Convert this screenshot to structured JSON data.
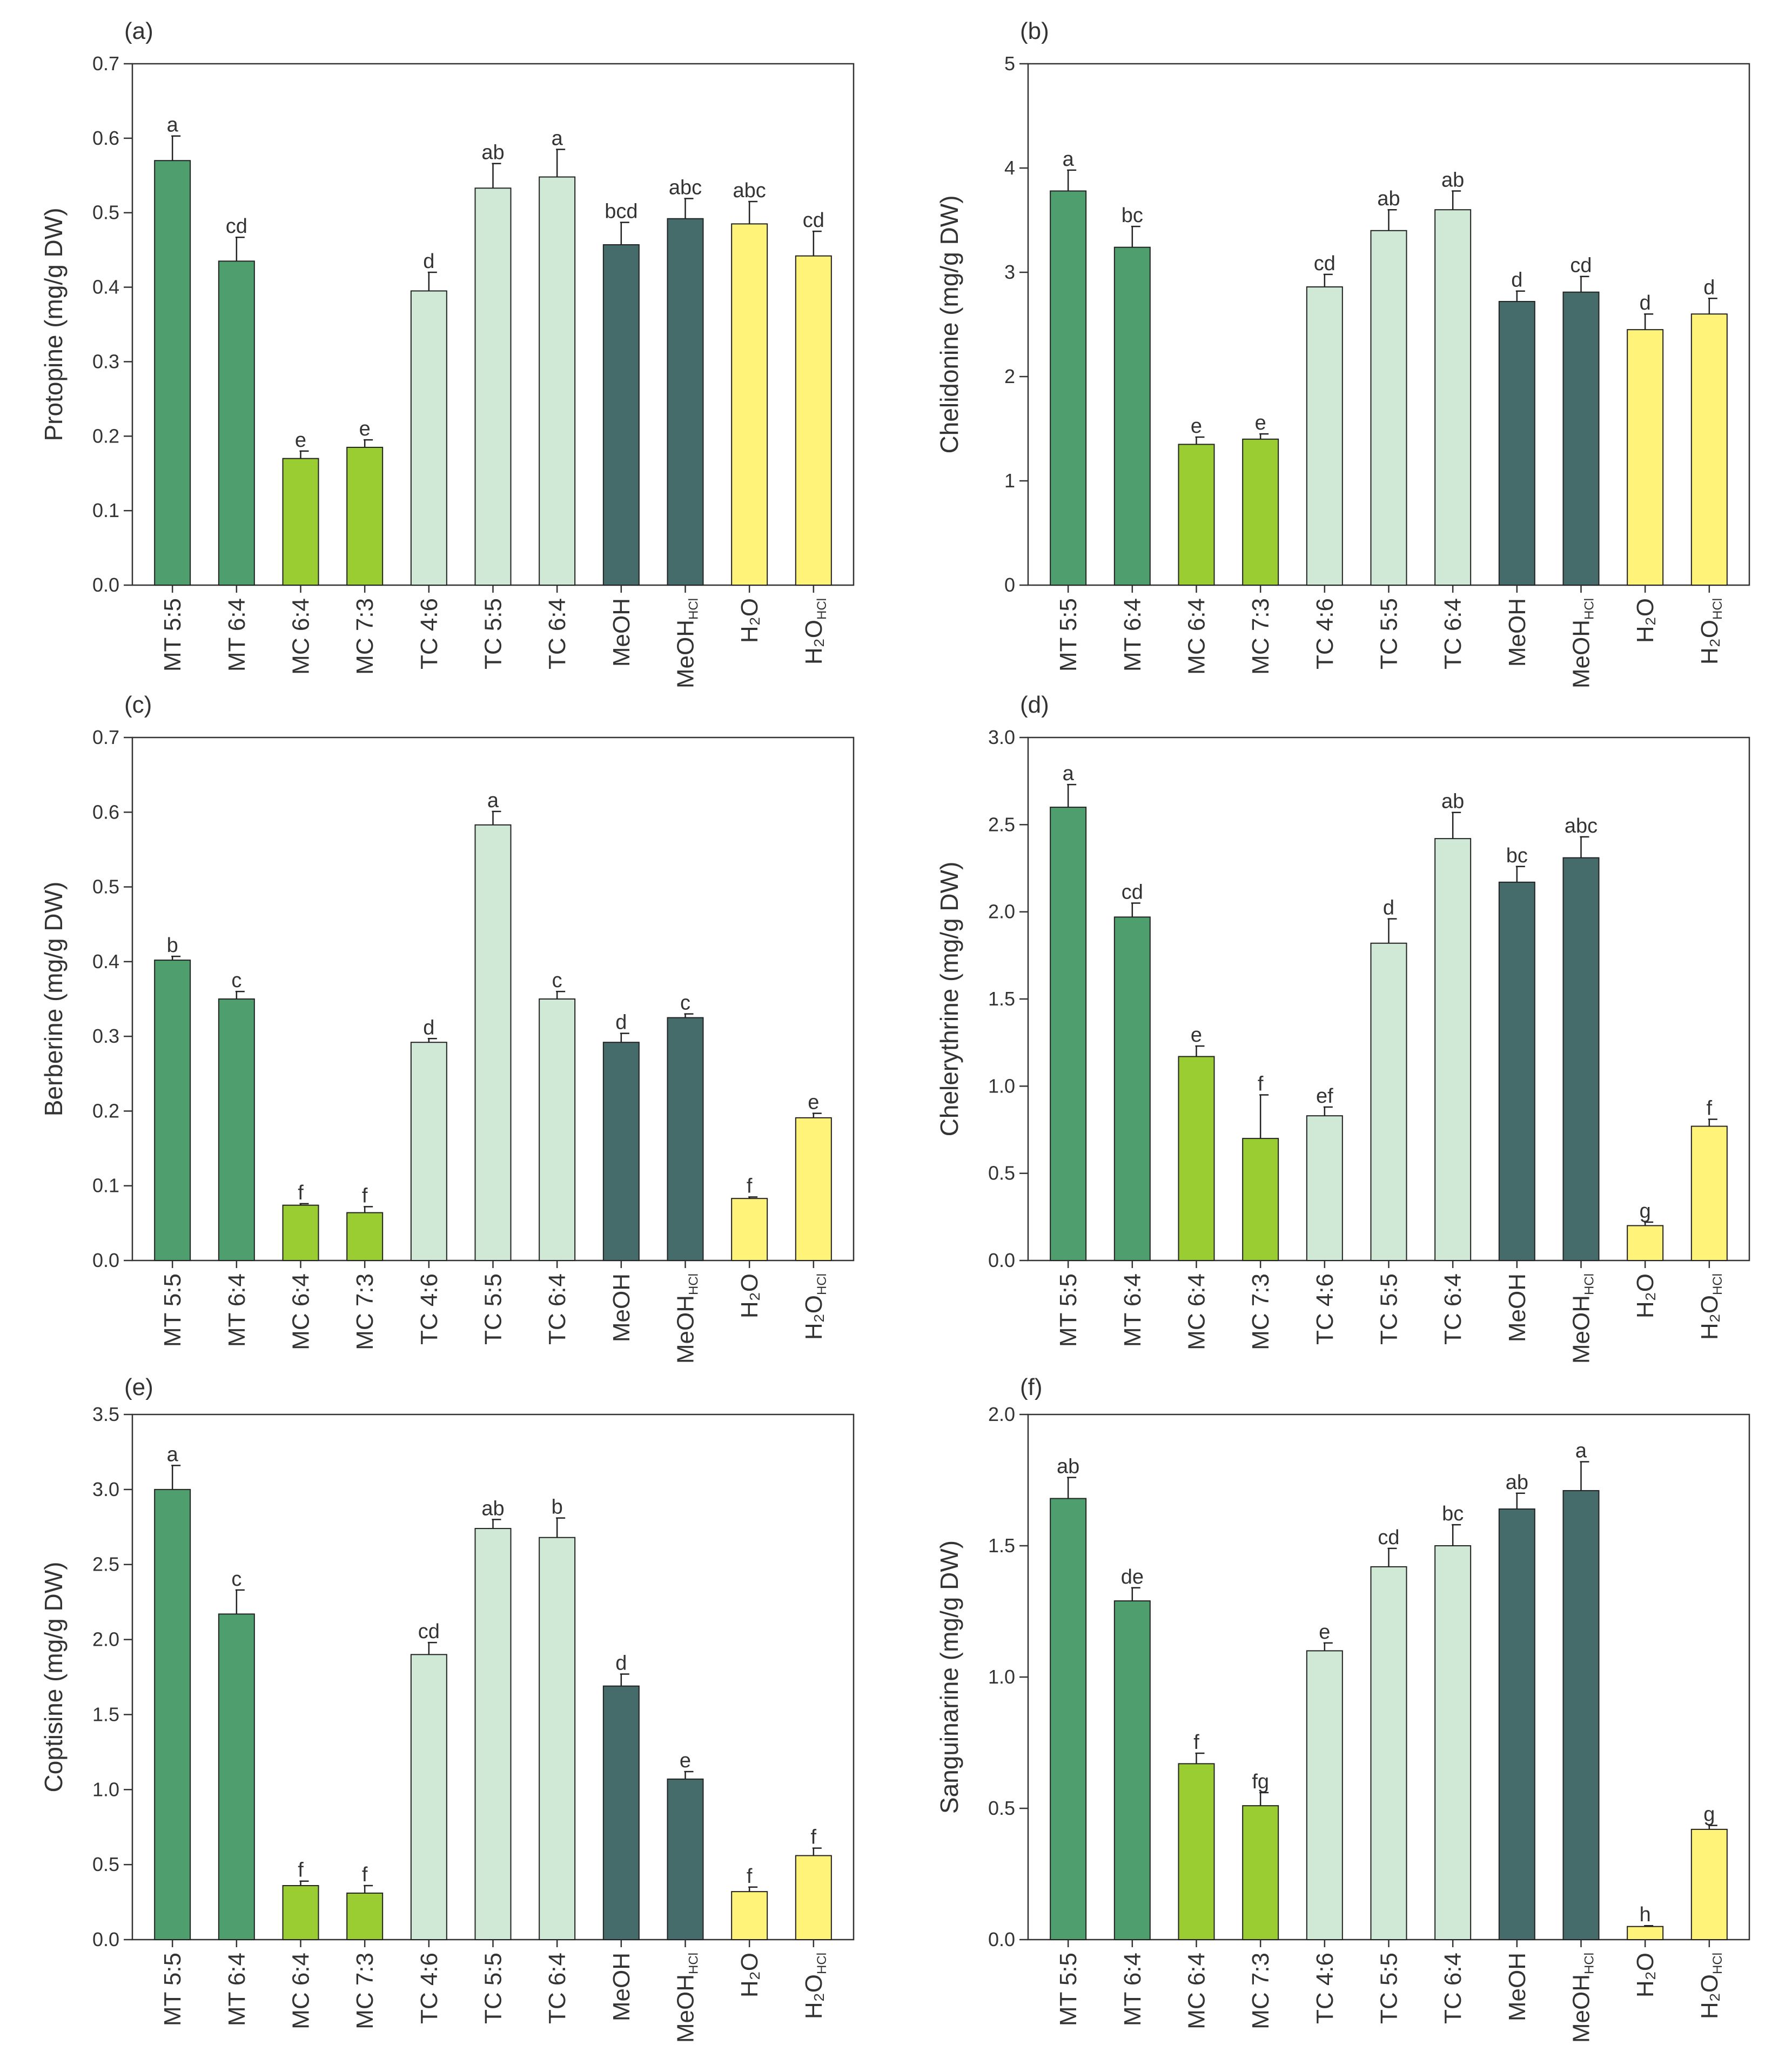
{
  "chart_data": [
    {
      "type": "bar",
      "panel_label": "(a)",
      "ylabel": "Protopine (mg/g DW)",
      "ylim": [
        0,
        0.7
      ],
      "yticks": [
        "0.0",
        "0.1",
        "0.2",
        "0.3",
        "0.4",
        "0.5",
        "0.6",
        "0.7"
      ],
      "values": [
        0.57,
        0.435,
        0.17,
        0.185,
        0.395,
        0.533,
        0.548,
        0.457,
        0.492,
        0.485,
        0.442
      ],
      "errors": [
        0.033,
        0.032,
        0.01,
        0.01,
        0.025,
        0.033,
        0.037,
        0.03,
        0.027,
        0.03,
        0.033
      ],
      "letters": [
        "a",
        "cd",
        "e",
        "e",
        "d",
        "ab",
        "a",
        "bcd",
        "abc",
        "abc",
        "cd"
      ]
    },
    {
      "type": "bar",
      "panel_label": "(b)",
      "ylabel": "Chelidonine (mg/g DW)",
      "ylim": [
        0,
        5
      ],
      "yticks": [
        "0",
        "1",
        "2",
        "3",
        "4",
        "5"
      ],
      "values": [
        3.78,
        3.24,
        1.35,
        1.4,
        2.86,
        3.4,
        3.6,
        2.72,
        2.81,
        2.45,
        2.6
      ],
      "errors": [
        0.2,
        0.2,
        0.07,
        0.05,
        0.12,
        0.2,
        0.18,
        0.1,
        0.15,
        0.15,
        0.15
      ],
      "letters": [
        "a",
        "bc",
        "e",
        "e",
        "cd",
        "ab",
        "ab",
        "d",
        "cd",
        "d",
        "d"
      ]
    },
    {
      "type": "bar",
      "panel_label": "(c)",
      "ylabel": "Berberine (mg/g DW)",
      "ylim": [
        0,
        0.7
      ],
      "yticks": [
        "0.0",
        "0.1",
        "0.2",
        "0.3",
        "0.4",
        "0.5",
        "0.6",
        "0.7"
      ],
      "values": [
        0.402,
        0.35,
        0.074,
        0.064,
        0.292,
        0.583,
        0.35,
        0.292,
        0.325,
        0.083,
        0.191
      ],
      "errors": [
        0.005,
        0.01,
        0.002,
        0.008,
        0.005,
        0.018,
        0.01,
        0.012,
        0.005,
        0.002,
        0.006
      ],
      "letters": [
        "b",
        "c",
        "f",
        "f",
        "d",
        "a",
        "c",
        "d",
        "c",
        "f",
        "e"
      ]
    },
    {
      "type": "bar",
      "panel_label": "(d)",
      "ylabel": "Chelerythrine (mg/g DW)",
      "ylim": [
        0,
        3.0
      ],
      "yticks": [
        "0.0",
        "0.5",
        "1.0",
        "1.5",
        "2.0",
        "2.5",
        "3.0"
      ],
      "values": [
        2.6,
        1.97,
        1.17,
        0.7,
        0.83,
        1.82,
        2.42,
        2.17,
        2.31,
        0.2,
        0.77
      ],
      "errors": [
        0.13,
        0.08,
        0.06,
        0.25,
        0.05,
        0.14,
        0.15,
        0.09,
        0.12,
        0.02,
        0.04
      ],
      "letters": [
        "a",
        "cd",
        "e",
        "f",
        "ef",
        "d",
        "ab",
        "bc",
        "abc",
        "g",
        "f"
      ]
    },
    {
      "type": "bar",
      "panel_label": "(e)",
      "ylabel": "Coptisine (mg/g DW)",
      "ylim": [
        0,
        3.5
      ],
      "yticks": [
        "0.0",
        "0.5",
        "1.0",
        "1.5",
        "2.0",
        "2.5",
        "3.0",
        "3.5"
      ],
      "values": [
        3.0,
        2.17,
        0.36,
        0.31,
        1.9,
        2.74,
        2.68,
        1.69,
        1.07,
        0.32,
        0.56
      ],
      "errors": [
        0.16,
        0.16,
        0.03,
        0.05,
        0.08,
        0.06,
        0.13,
        0.08,
        0.05,
        0.03,
        0.05
      ],
      "letters": [
        "a",
        "c",
        "f",
        "f",
        "cd",
        "ab",
        "b",
        "d",
        "e",
        "f",
        "f"
      ]
    },
    {
      "type": "bar",
      "panel_label": "(f)",
      "ylabel": "Sanguinarine (mg/g DW)",
      "ylim": [
        0,
        2.0
      ],
      "yticks": [
        "0.0",
        "0.5",
        "1.0",
        "1.5",
        "2.0"
      ],
      "values": [
        1.68,
        1.29,
        0.67,
        0.51,
        1.1,
        1.42,
        1.5,
        1.64,
        1.71,
        0.05,
        0.42
      ],
      "errors": [
        0.08,
        0.05,
        0.04,
        0.05,
        0.03,
        0.07,
        0.08,
        0.06,
        0.11,
        0.003,
        0.015
      ],
      "letters": [
        "ab",
        "de",
        "f",
        "fg",
        "e",
        "cd",
        "bc",
        "ab",
        "a",
        "h",
        "g"
      ]
    }
  ],
  "categories": [
    {
      "base": "MT 5:5",
      "sub": "",
      "colorKey": "mt"
    },
    {
      "base": "MT 6:4",
      "sub": "",
      "colorKey": "mt"
    },
    {
      "base": "MC 6:4",
      "sub": "",
      "colorKey": "mc"
    },
    {
      "base": "MC 7:3",
      "sub": "",
      "colorKey": "mc"
    },
    {
      "base": "TC 4:6",
      "sub": "",
      "colorKey": "tc"
    },
    {
      "base": "TC 5:5",
      "sub": "",
      "colorKey": "tc"
    },
    {
      "base": "TC 6:4",
      "sub": "",
      "colorKey": "tc"
    },
    {
      "base": "MeOH",
      "sub": "",
      "colorKey": "meoh"
    },
    {
      "base": "MeOH",
      "sub": "HCl",
      "colorKey": "meoh"
    },
    {
      "base": "H₂O",
      "sub": "",
      "colorKey": "h2o"
    },
    {
      "base": "H₂O",
      "sub": "HCl",
      "colorKey": "h2o"
    }
  ],
  "colors": {
    "mt": "#4e9e6e",
    "mc": "#9acd32",
    "tc": "#cfe9d6",
    "meoh": "#456b6b",
    "h2o": "#fff37a",
    "stroke": "#222222",
    "axis": "#333333"
  }
}
